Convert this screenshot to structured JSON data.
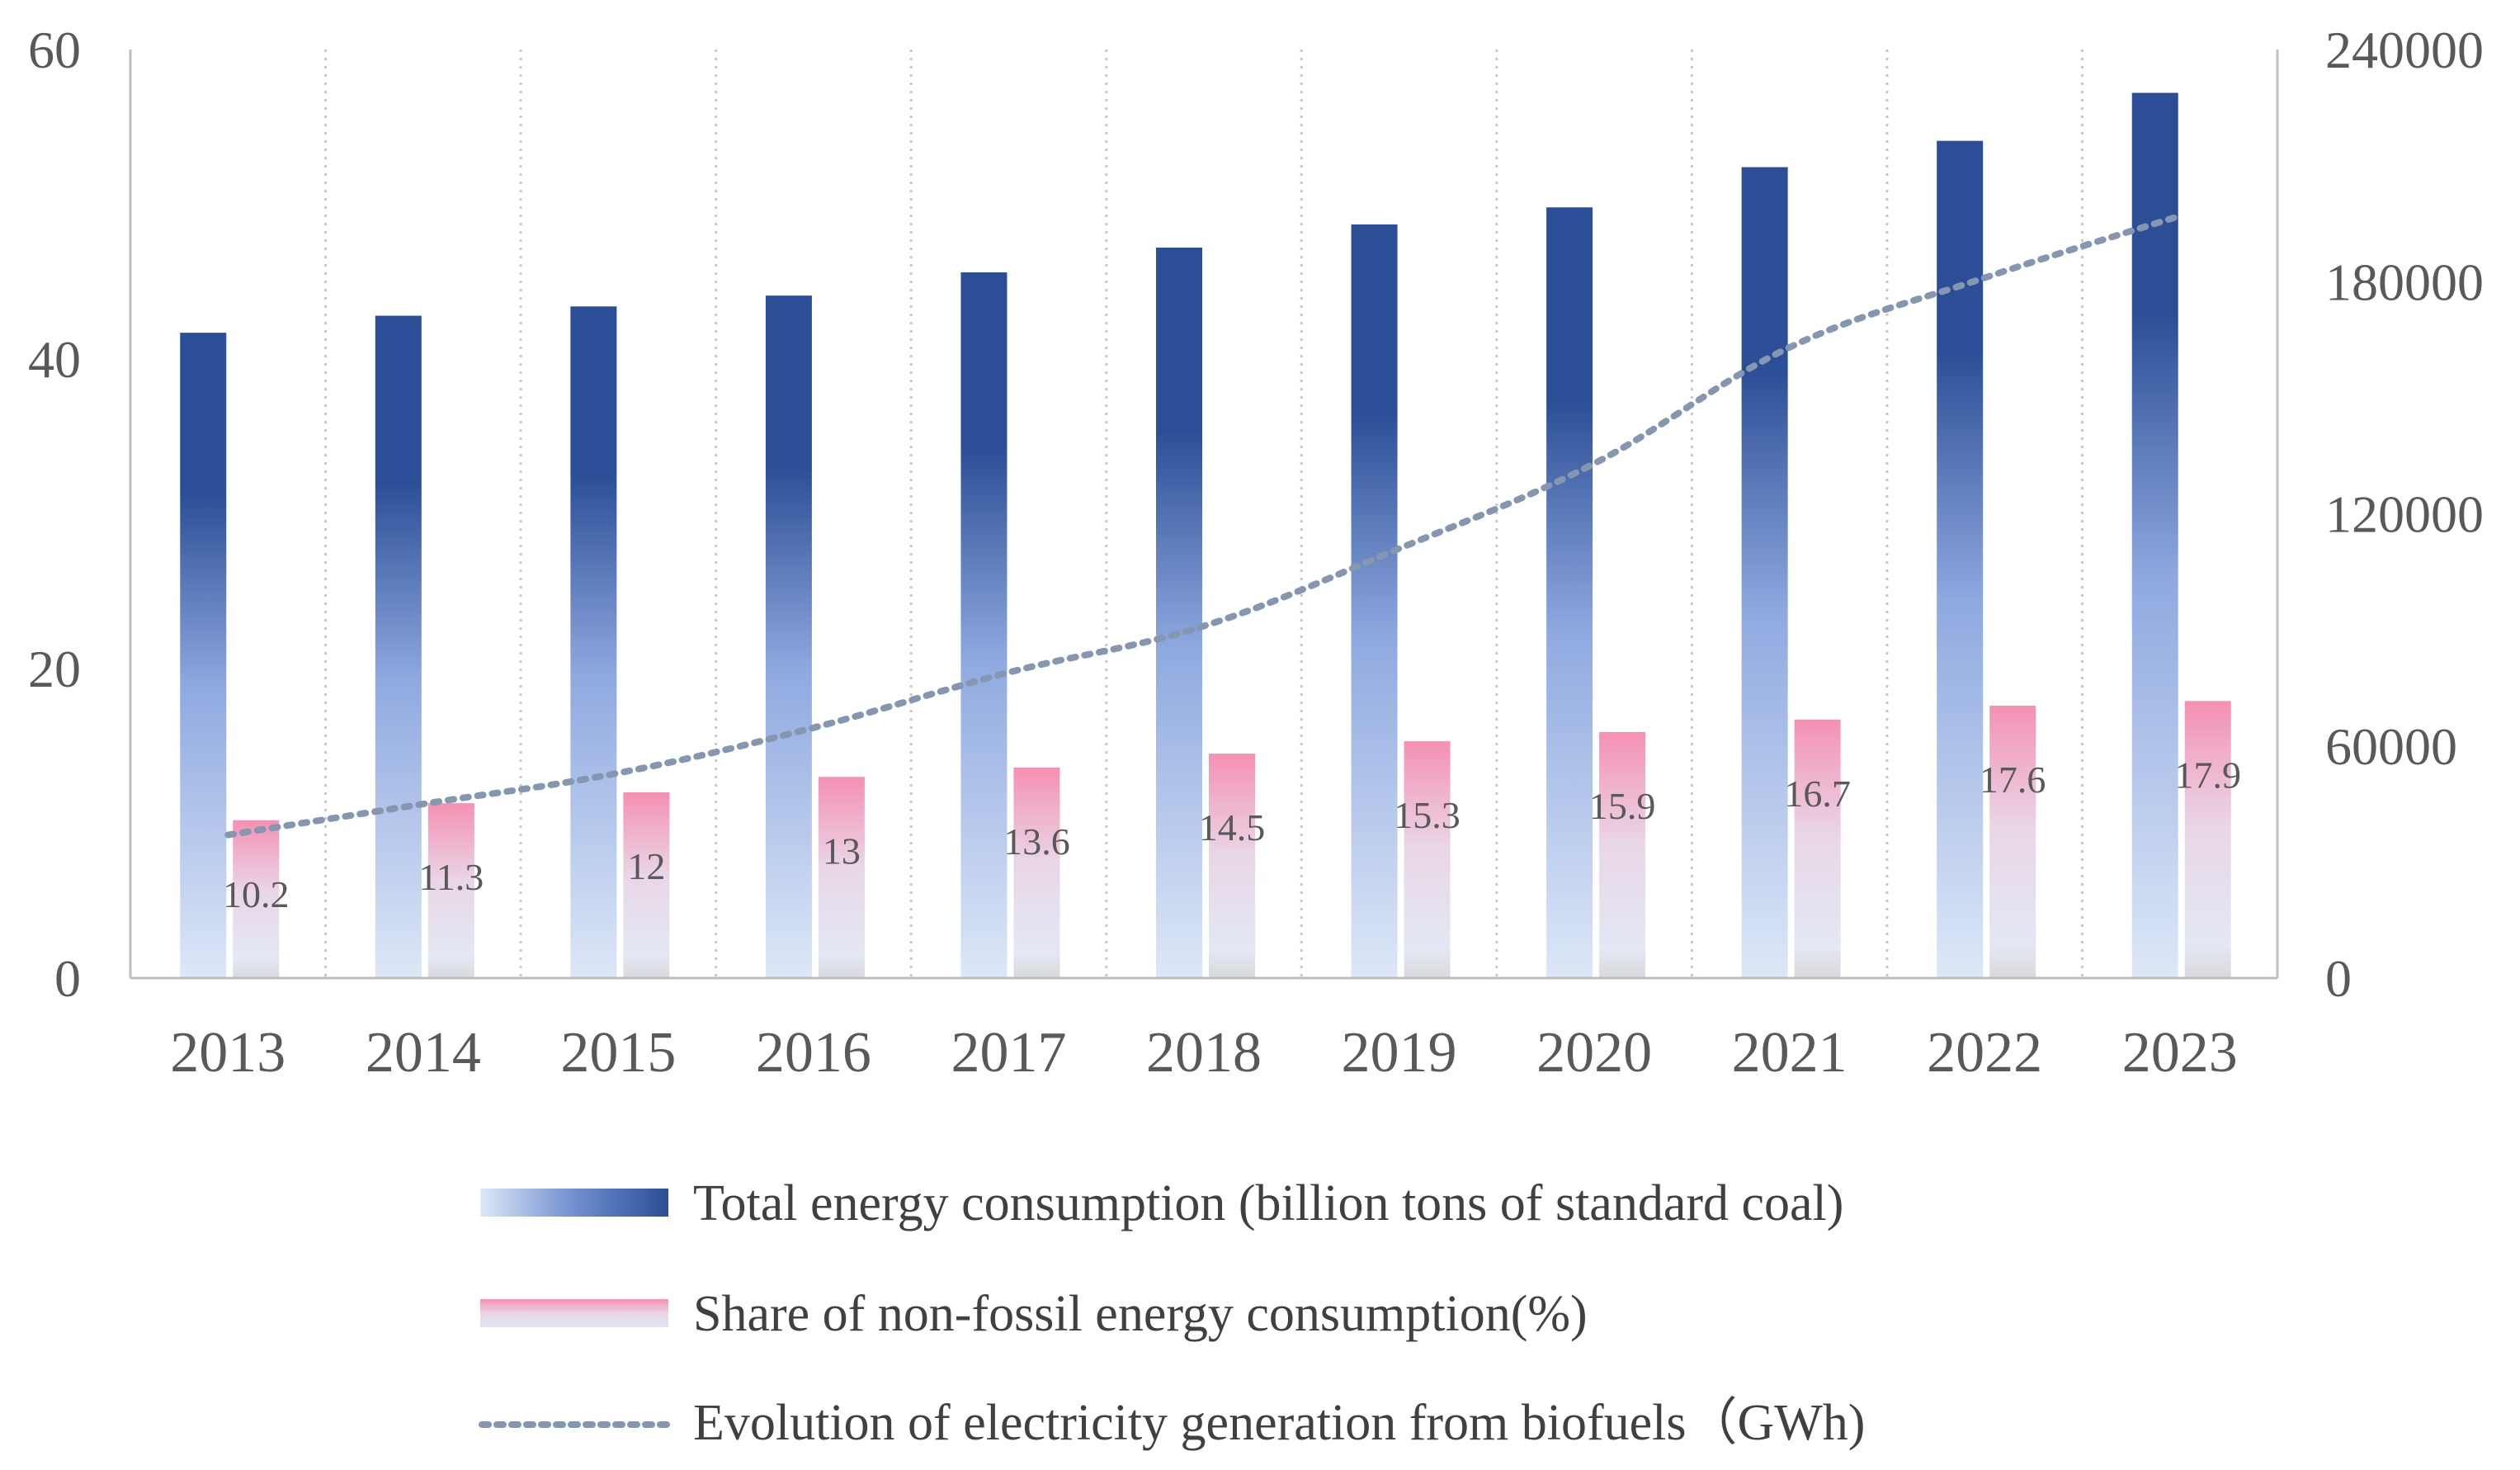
{
  "chart_data": {
    "type": "bar",
    "categories": [
      "2013",
      "2014",
      "2015",
      "2016",
      "2017",
      "2018",
      "2019",
      "2020",
      "2021",
      "2022",
      "2023"
    ],
    "series": [
      {
        "name": "Total energy consumption (billion tons of standard coal)",
        "type": "bar",
        "axis": "left",
        "values": [
          41.7,
          42.8,
          43.4,
          44.1,
          45.6,
          47.2,
          48.7,
          49.8,
          52.4,
          54.1,
          57.2
        ]
      },
      {
        "name": "Share of non-fossil energy consumption(%)",
        "type": "bar",
        "axis": "left",
        "values": [
          10.2,
          11.3,
          12,
          13,
          13.6,
          14.5,
          15.3,
          15.9,
          16.7,
          17.6,
          17.9
        ],
        "labels": [
          "10.2",
          "11.3",
          "12",
          "13",
          "13.6",
          "14.5",
          "15.3",
          "15.9",
          "16.7",
          "17.6",
          "17.9"
        ]
      },
      {
        "name": "Evolution of electricity generation from biofuels（GWh)",
        "type": "line",
        "axis": "right",
        "values": [
          37000,
          45000,
          53000,
          64700,
          79000,
          91000,
          111000,
          133000,
          163000,
          181000,
          197000
        ]
      }
    ],
    "left_axis": {
      "ylim": [
        0,
        60
      ],
      "ticks": [
        "0",
        "20",
        "40",
        "60"
      ]
    },
    "right_axis": {
      "ylim": [
        0,
        240000
      ],
      "ticks": [
        "0",
        "60000",
        "120000",
        "180000",
        "240000"
      ]
    },
    "legend_position": "bottom",
    "vertical_grid": "dotted",
    "colors": {
      "total_dark": "#2b4e96",
      "total_mid": "#8fa9e0",
      "total_light": "#dde7f7",
      "share_pink": "#f590b4",
      "share_light": "#dfe6f4",
      "line": "#8496b0",
      "axis": "#bfbfbf",
      "grid": "#c8c8c8"
    }
  }
}
